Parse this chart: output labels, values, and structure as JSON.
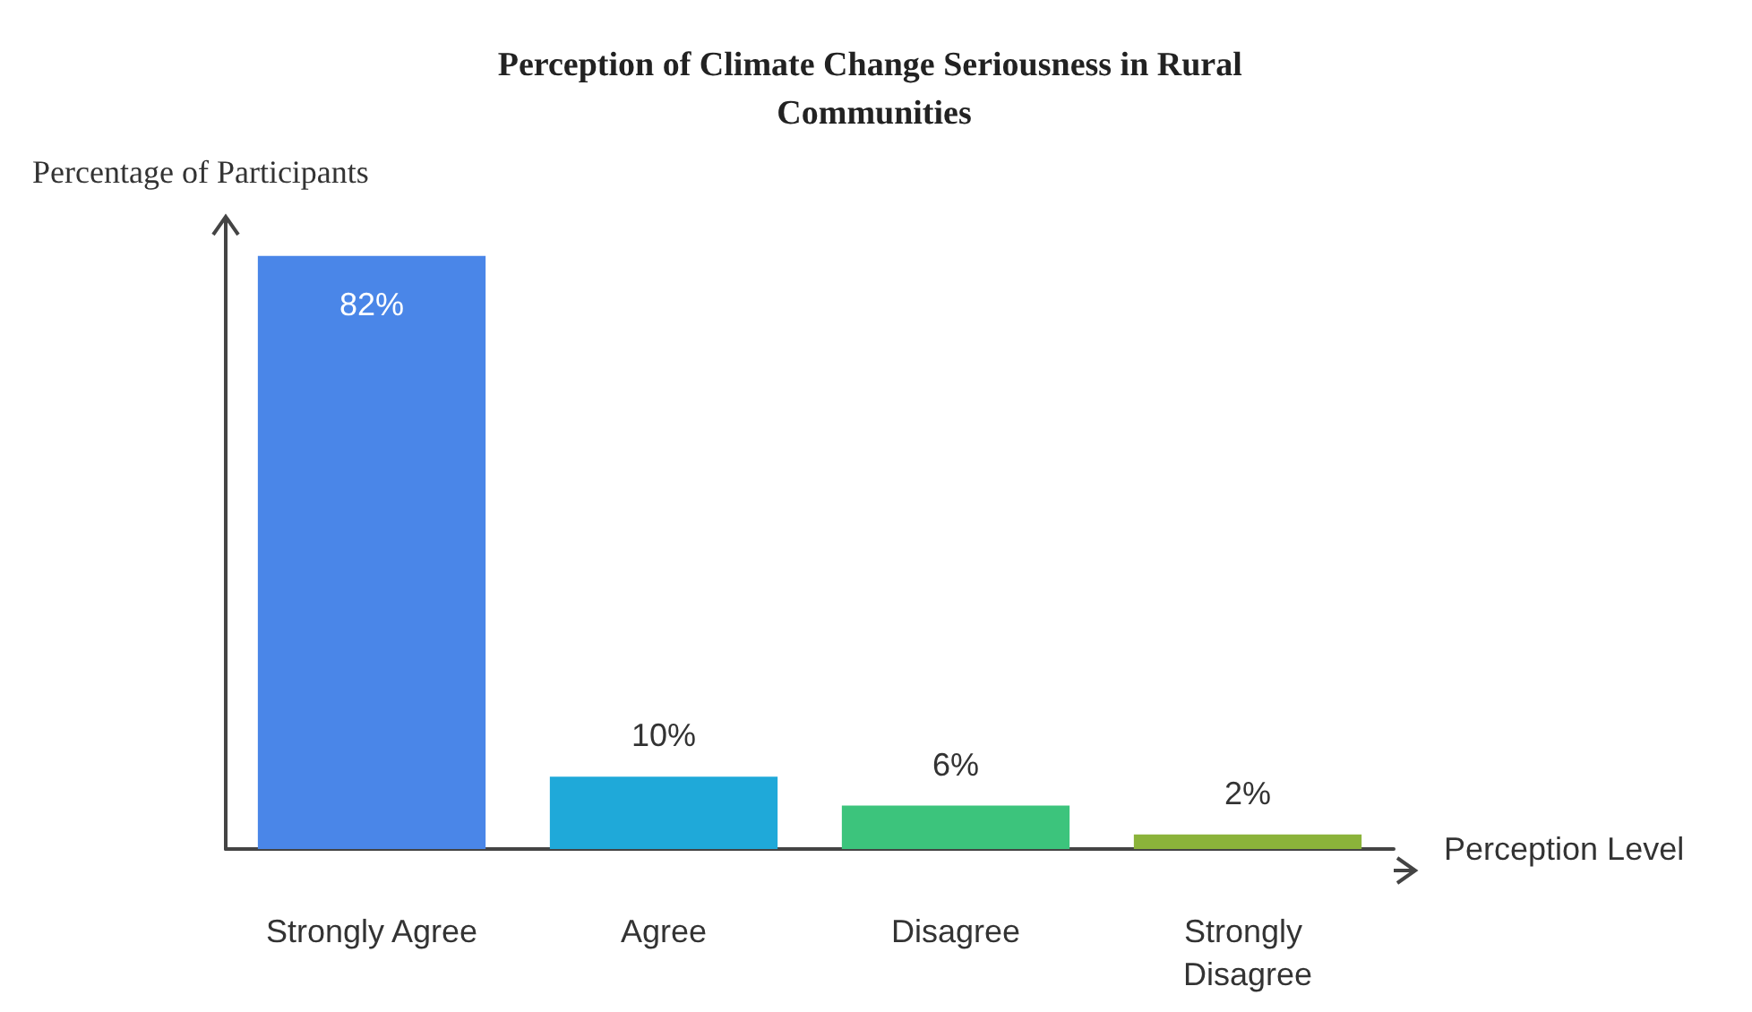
{
  "chart_data": {
    "type": "bar",
    "title": "Perception of Climate Change Seriousness in Rural Communities",
    "xlabel": "Perception Level",
    "ylabel": "Percentage of Participants",
    "categories": [
      "Strongly Agree",
      "Agree",
      "Disagree",
      "Strongly Disagree"
    ],
    "values": [
      82,
      10,
      6,
      2
    ],
    "colors": [
      "#4a86e8",
      "#1fa9d9",
      "#3cc47c",
      "#8bb33a"
    ],
    "value_labels": [
      "82%",
      "10%",
      "6%",
      "2%"
    ],
    "tick_labels": "x"
  }
}
